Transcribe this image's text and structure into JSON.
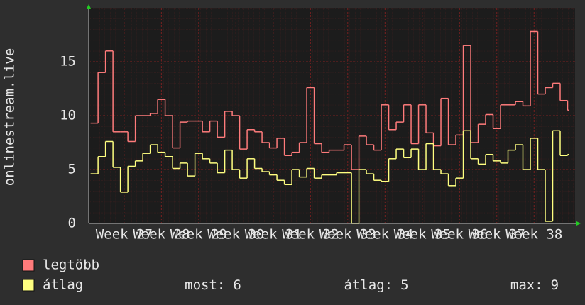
{
  "chart_data": {
    "type": "step",
    "ylabel": "onlinestream.live",
    "x": [
      26.1,
      26.3,
      26.5,
      26.7,
      26.9,
      27.1,
      27.3,
      27.5,
      27.7,
      27.9,
      28.1,
      28.3,
      28.5,
      28.7,
      28.9,
      29.1,
      29.3,
      29.5,
      29.7,
      29.9,
      30.1,
      30.3,
      30.5,
      30.7,
      30.9,
      31.1,
      31.3,
      31.5,
      31.7,
      31.9,
      32.1,
      32.3,
      32.5,
      32.7,
      32.9,
      33.1,
      33.3,
      33.5,
      33.7,
      33.9,
      34.1,
      34.3,
      34.5,
      34.7,
      34.9,
      35.1,
      35.3,
      35.5,
      35.7,
      35.9,
      36.1,
      36.3,
      36.5,
      36.7,
      36.9,
      37.1,
      37.3,
      37.5,
      37.7,
      37.9,
      38.1,
      38.3,
      38.5,
      38.7,
      38.9
    ],
    "series": [
      {
        "name": "legtöbb",
        "color": "#ff7b7b",
        "values": [
          9.3,
          14,
          16,
          8.5,
          8.5,
          7.6,
          10,
          10,
          10.2,
          11.5,
          10,
          7,
          9.4,
          9.5,
          9.5,
          8.5,
          9.5,
          8,
          10.4,
          10,
          6.9,
          8.7,
          8.5,
          7.5,
          7,
          7.9,
          6.3,
          6.6,
          7.5,
          12.6,
          7.4,
          6.6,
          6.8,
          6.8,
          7.3,
          5,
          8.1,
          7.3,
          6.8,
          11,
          8.7,
          9.4,
          11,
          7.4,
          11,
          8.4,
          7.2,
          11.6,
          7.3,
          8.2,
          16.5,
          7.5,
          9.2,
          10.1,
          8.8,
          11,
          11,
          11.3,
          10.9,
          17.8,
          12,
          12.6,
          13,
          11.4,
          10.5
        ]
      },
      {
        "name": "átlag",
        "color": "#ffff80",
        "values": [
          4.6,
          6.2,
          7.6,
          5.2,
          2.9,
          5.3,
          5.8,
          6.5,
          7.3,
          6.6,
          6.2,
          5.1,
          5.6,
          4.4,
          6.5,
          6,
          5.6,
          4.7,
          6.8,
          5,
          4.2,
          6,
          5.1,
          4.8,
          4.5,
          4,
          3.6,
          5,
          4.3,
          5.1,
          4.2,
          4.5,
          4.5,
          4.7,
          4.7,
          0,
          5,
          4.6,
          4,
          3.9,
          6,
          6.9,
          6.1,
          6.9,
          5,
          7.4,
          5,
          4.6,
          3.5,
          4.2,
          8.6,
          6,
          5.5,
          6.4,
          5.8,
          5.6,
          6.8,
          7.3,
          5,
          7.9,
          5,
          0.2,
          8.6,
          6.3,
          6.4
        ]
      }
    ],
    "xlim": [
      26.05,
      39.1
    ],
    "xticks": [
      {
        "value": 27,
        "label": "Week 27"
      },
      {
        "value": 28,
        "label": "Week 28"
      },
      {
        "value": 29,
        "label": "Week 29"
      },
      {
        "value": 30,
        "label": "Week 30"
      },
      {
        "value": 31,
        "label": "Week 31"
      },
      {
        "value": 32,
        "label": "Week 32"
      },
      {
        "value": 33,
        "label": "Week 33"
      },
      {
        "value": 34,
        "label": "Week 34"
      },
      {
        "value": 35,
        "label": "Week 35"
      },
      {
        "value": 36,
        "label": "Week 36"
      },
      {
        "value": 37,
        "label": "Week 37"
      },
      {
        "value": 38,
        "label": "Week 38"
      }
    ],
    "ylim": [
      0,
      20
    ],
    "yticks": [
      0,
      5,
      10,
      15
    ],
    "grid": true,
    "stats": [
      {
        "label": "most:",
        "value": 6
      },
      {
        "label": "átlag:",
        "value": 5
      },
      {
        "label": "max:",
        "value": 9
      }
    ]
  }
}
